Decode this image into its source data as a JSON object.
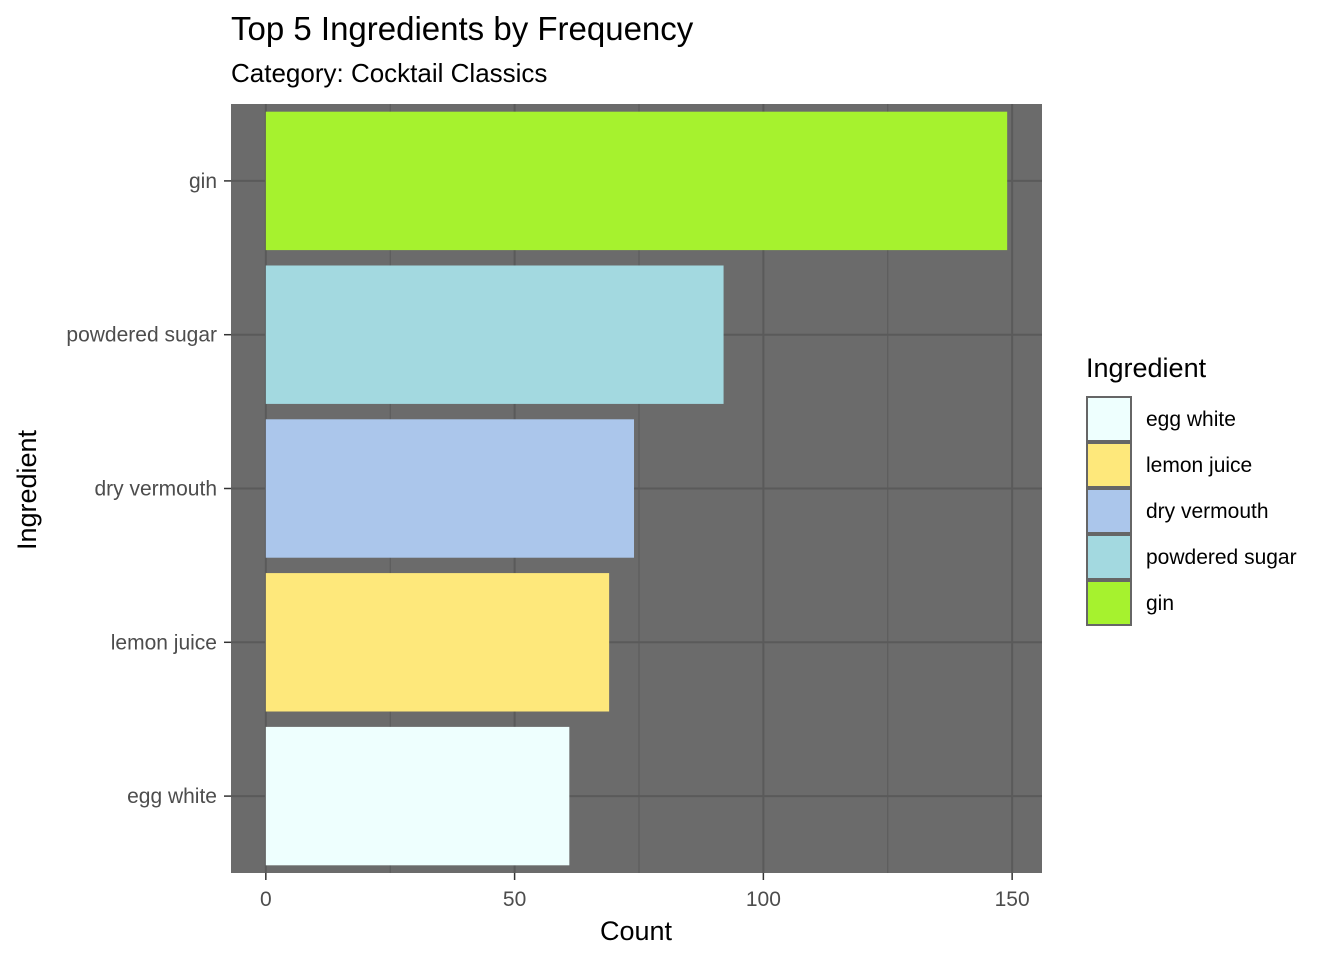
{
  "chart_data": {
    "type": "bar",
    "orientation": "horizontal",
    "title": "Top 5 Ingredients by Frequency",
    "subtitle": "Category: Cocktail Classics",
    "xlabel": "Count",
    "ylabel": "Ingredient",
    "xlim": [
      -7,
      156
    ],
    "xticks": [
      0,
      50,
      100,
      150
    ],
    "grid": true,
    "panel_background": "#6b6b6b",
    "grid_color": "#5a5a5a",
    "categories": [
      "gin",
      "powdered sugar",
      "dry vermouth",
      "lemon juice",
      "egg white"
    ],
    "values": [
      149,
      92,
      74,
      69,
      61
    ],
    "colors": [
      "#a6f22e",
      "#a3d9e0",
      "#abc6eb",
      "#fee87b",
      "#eefffe"
    ],
    "legend": {
      "title": "Ingredient",
      "position": "right",
      "items": [
        {
          "label": "egg white",
          "color": "#eefffe"
        },
        {
          "label": "lemon juice",
          "color": "#fee87b"
        },
        {
          "label": "dry vermouth",
          "color": "#abc6eb"
        },
        {
          "label": "powdered sugar",
          "color": "#a3d9e0"
        },
        {
          "label": "gin",
          "color": "#a6f22e"
        }
      ]
    }
  }
}
